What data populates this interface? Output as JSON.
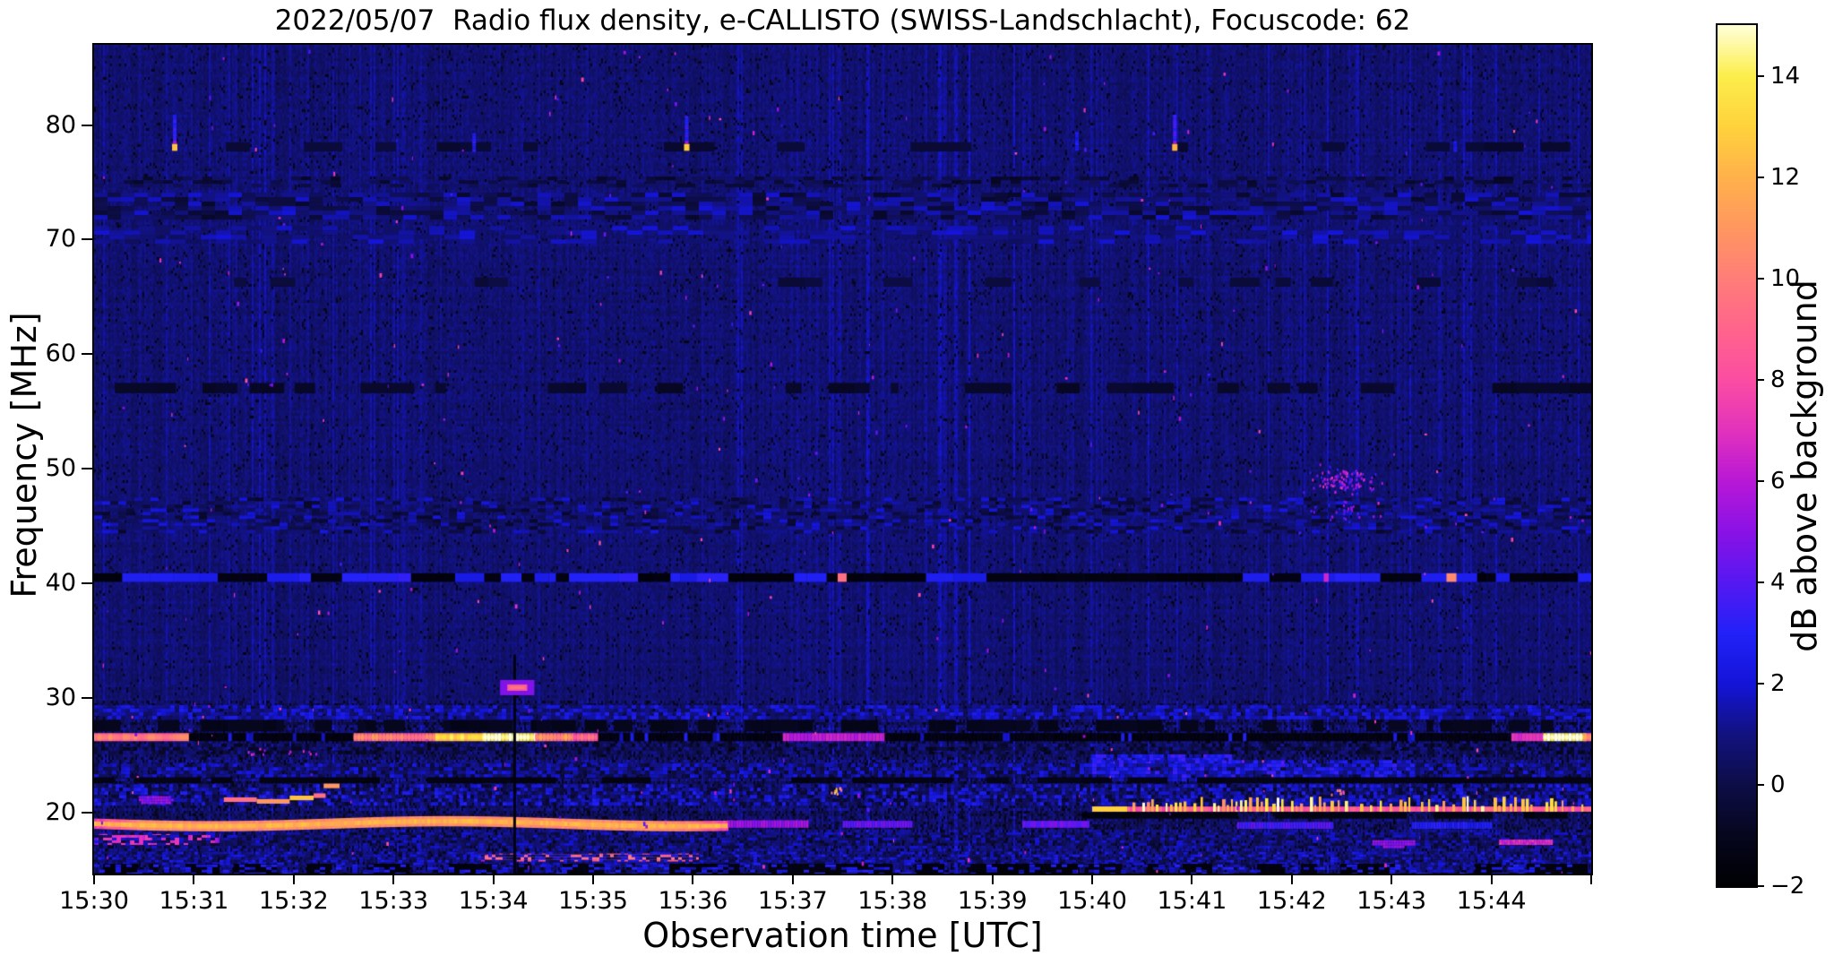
{
  "chart_data": {
    "type": "heatmap",
    "title": "2022/05/07  Radio flux density, e-CALLISTO (SWISS-Landschlacht), Focuscode: 62",
    "xlabel": "Observation time [UTC]",
    "ylabel": "Frequency [MHz]",
    "cbar_label": "dB above background",
    "x_axis": {
      "start": "15:30",
      "end": "15:45",
      "duration_min": 15,
      "tick_labels": [
        "15:30",
        "15:31",
        "15:32",
        "15:33",
        "15:34",
        "15:35",
        "15:36",
        "15:37",
        "15:38",
        "15:39",
        "15:40",
        "15:41",
        "15:42",
        "15:43",
        "15:44"
      ],
      "end_tick_unlabeled": true
    },
    "y_axis": {
      "range": [
        14.7,
        87.0
      ],
      "ticks": [
        80,
        70,
        60,
        50,
        40,
        30,
        20
      ]
    },
    "colorbar": {
      "range": [
        -2,
        15
      ],
      "tick_values": [
        14,
        12,
        10,
        8,
        6,
        4,
        2,
        0,
        -2
      ],
      "tick_labels": [
        "14",
        "12",
        "10",
        "8",
        "6",
        "4",
        "2",
        "0",
        "−2"
      ]
    },
    "colormap": [
      {
        "v": -2,
        "c": "#000003"
      },
      {
        "v": -1,
        "c": "#06061e"
      },
      {
        "v": 0,
        "c": "#0d0d47"
      },
      {
        "v": 1,
        "c": "#12127f"
      },
      {
        "v": 2,
        "c": "#1414d8"
      },
      {
        "v": 3,
        "c": "#2222f8"
      },
      {
        "v": 4,
        "c": "#5618f2"
      },
      {
        "v": 5,
        "c": "#8a12e6"
      },
      {
        "v": 6,
        "c": "#b818d6"
      },
      {
        "v": 7,
        "c": "#e232bd"
      },
      {
        "v": 8,
        "c": "#fb4da2"
      },
      {
        "v": 9,
        "c": "#ff648c"
      },
      {
        "v": 10,
        "c": "#ff7d78"
      },
      {
        "v": 11,
        "c": "#ff9760"
      },
      {
        "v": 12,
        "c": "#ffb14b"
      },
      {
        "v": 13,
        "c": "#ffd23c"
      },
      {
        "v": 14,
        "c": "#fcee4b"
      },
      {
        "v": 15,
        "c": "#ffffd9"
      }
    ],
    "background": {
      "regions": [
        {
          "f": [
            30,
            87
          ],
          "mean": 0.72,
          "var": 0.75,
          "dark_p": 0.045,
          "stria": 1.0,
          "rowmod": 0.25
        },
        {
          "f": [
            14.7,
            30
          ],
          "mean": 0.5,
          "var": 1.5,
          "dark_p": 0.16,
          "stria": 1.2,
          "rowmod": 0.9
        }
      ]
    },
    "features": [
      {
        "type": "mottle",
        "name": "75MHz-dark-row",
        "f": [
          74.7,
          75.5
        ],
        "t": [
          0,
          15
        ],
        "vmin": -0.9,
        "vmax": 0.8,
        "cw": 11,
        "ch": 4,
        "p": 0.5
      },
      {
        "type": "mottle",
        "name": "73MHz-wavy-band",
        "f": [
          71.9,
          74.1
        ],
        "t": [
          0,
          15
        ],
        "vmin": -0.7,
        "vmax": 2.0,
        "cw": 15,
        "ch": 5,
        "p": 0.8
      },
      {
        "type": "mottle",
        "name": "70MHz-light-band",
        "f": [
          69.9,
          71.2
        ],
        "t": [
          0,
          15
        ],
        "vmin": 0.4,
        "vmax": 2.1,
        "cw": 17,
        "ch": 5,
        "p": 0.55
      },
      {
        "type": "darkdash",
        "name": "78MHz-dark-dashes",
        "f": [
          77.7,
          78.5
        ],
        "t": [
          0,
          15
        ],
        "v": -0.45,
        "p": 0.4,
        "smin": 0.1,
        "smax": 0.4
      },
      {
        "type": "darkdash",
        "name": "66MHz-dark-dashes",
        "f": [
          65.9,
          66.7
        ],
        "t": [
          0,
          15
        ],
        "v": -0.25,
        "p": 0.3,
        "smin": 0.1,
        "smax": 0.3
      },
      {
        "type": "darkdash",
        "name": "57MHz-dark-dashes",
        "f": [
          56.6,
          57.5
        ],
        "t": [
          0,
          15
        ],
        "v": -0.7,
        "p": 0.45,
        "smin": 0.07,
        "smax": 0.28
      },
      {
        "type": "mottle",
        "name": "46MHz-herringbone",
        "f": [
          44.4,
          47.5
        ],
        "t": [
          0,
          15
        ],
        "vmin": -0.8,
        "vmax": 2.2,
        "cw": 9,
        "ch": 4,
        "p": 0.6,
        "sp": 0.004,
        "spv": [
          4.5,
          8
        ]
      },
      {
        "type": "rfidash",
        "name": "40.5MHz-notch",
        "f": [
          40.15,
          40.9
        ],
        "t": [
          0,
          15
        ],
        "dark": -1.7,
        "bright": 2.9,
        "pb": 0.42,
        "dashes": [
          [
            7.45,
            0.09,
            9.5
          ],
          [
            13.55,
            0.1,
            10.5
          ],
          [
            12.32,
            0.05,
            6.5
          ]
        ]
      },
      {
        "type": "mottle",
        "name": "29MHz-speckle-row",
        "f": [
          28.3,
          29.4
        ],
        "t": [
          0,
          15
        ],
        "vmin": 0.2,
        "vmax": 2.7,
        "cw": 5,
        "ch": 4,
        "p": 0.85,
        "sp": 0.007,
        "spv": [
          5,
          9.5
        ]
      },
      {
        "type": "darkdash",
        "name": "27.5MHz-dark-row",
        "f": [
          27.1,
          28.1
        ],
        "t": [
          0,
          15
        ],
        "v": -1.1,
        "p": 0.55,
        "smin": 0.05,
        "smax": 0.25
      },
      {
        "type": "mottle",
        "name": "25.6MHz-row",
        "f": [
          25.2,
          26.05
        ],
        "t": [
          0,
          15
        ],
        "vmin": -1.2,
        "vmax": 1.3,
        "cw": 4,
        "ch": 4,
        "p": 0.8
      },
      {
        "type": "mottle",
        "name": "24.6MHz-pink-flecks",
        "f": [
          24.2,
          25.1
        ],
        "t": [
          10,
          11.4
        ],
        "vmin": 1.5,
        "vmax": 4,
        "cw": 4,
        "ch": 4,
        "p": 0.85,
        "sp": 0.05,
        "spv": [
          6.5,
          10
        ]
      },
      {
        "type": "mottle",
        "name": "23.7MHz-row",
        "f": [
          23.1,
          24.3
        ],
        "t": [
          0,
          15
        ],
        "vmin": -0.6,
        "vmax": 2.5,
        "cw": 5,
        "ch": 4,
        "p": 0.8
      },
      {
        "type": "mottle",
        "name": "23.8MHz-purple-region",
        "f": [
          22.9,
          24.6
        ],
        "t": [
          10,
          13.2
        ],
        "vmin": 0.8,
        "vmax": 3.6,
        "cw": 5,
        "ch": 4,
        "p": 0.7,
        "sp": 0.02,
        "spv": [
          5,
          8
        ]
      },
      {
        "type": "darkdash",
        "name": "22.9MHz-dark-row",
        "f": [
          22.6,
          23.1
        ],
        "t": [
          0,
          15
        ],
        "v": -1.4,
        "p": 0.7,
        "smin": 0.1,
        "smax": 0.35
      },
      {
        "type": "mottle",
        "name": "21.6MHz-row",
        "f": [
          20.8,
          22.5
        ],
        "t": [
          0,
          15
        ],
        "vmin": -0.9,
        "vmax": 2.9,
        "cw": 4,
        "ch": 4,
        "p": 0.85,
        "sp": 0.004,
        "spv": [
          5,
          9
        ]
      },
      {
        "type": "blob",
        "name": "21MHz-purple-blob",
        "t": [
          0.42,
          0.78
        ],
        "f": [
          20.8,
          21.7
        ],
        "v": 5.0,
        "jit": 1.5
      },
      {
        "type": "stair",
        "name": "21MHz-orange-staircase",
        "thick": 0.4,
        "segs": [
          [
            1.3,
            1.63,
            21.15,
            9.5
          ],
          [
            1.63,
            1.96,
            21.0,
            11
          ],
          [
            1.96,
            2.2,
            21.3,
            12.5
          ],
          [
            2.2,
            2.32,
            21.5,
            9.5
          ],
          [
            2.3,
            2.46,
            22.35,
            11.0
          ]
        ]
      },
      {
        "type": "cluster",
        "name": "21.9MHz-yellow-blips",
        "ct": 7.42,
        "cf": 21.9,
        "st": 0.07,
        "sf": 0.35,
        "n": 10,
        "vmin": 9,
        "vmax": 13.5
      },
      {
        "type": "cluster",
        "name": "22MHz-orange-arc",
        "ct": 12.45,
        "cf": 21.9,
        "st": 0.1,
        "sf": 0.3,
        "n": 8,
        "vmin": 8,
        "vmax": 11
      },
      {
        "type": "cluster",
        "name": "25.4MHz-pink-specks",
        "ct": 1.9,
        "cf": 25.4,
        "st": 0.5,
        "sf": 0.25,
        "n": 12,
        "vmin": 5,
        "vmax": 8
      },
      {
        "type": "segments",
        "name": "26.6MHz-RFI-band",
        "f": [
          26.25,
          26.95
        ],
        "jitter": 1.2,
        "segs": [
          [
            0,
            0.95,
            9.3
          ],
          [
            0.95,
            2.6,
            -1.6
          ],
          [
            2.6,
            3.42,
            9.3
          ],
          [
            3.42,
            3.9,
            12.5
          ],
          [
            3.9,
            4.42,
            14.2
          ],
          [
            4.42,
            4.8,
            10
          ],
          [
            4.8,
            5.05,
            8.3
          ],
          [
            5.05,
            6.9,
            -1.6
          ],
          [
            6.9,
            7.92,
            6.2
          ],
          [
            7.92,
            14.2,
            -1.6
          ],
          [
            14.2,
            14.52,
            7
          ],
          [
            14.52,
            14.92,
            14.3
          ],
          [
            14.92,
            15,
            10
          ]
        ]
      },
      {
        "type": "hband",
        "name": "19MHz-orange-band",
        "f": [
          18.6,
          19.5
        ],
        "t": [
          0,
          6.35
        ],
        "v": 10.6,
        "corev": 12,
        "wave": 0.12,
        "fade": 0.4
      },
      {
        "type": "hband",
        "name": "19MHz-fade-1",
        "f": [
          18.7,
          19.35
        ],
        "t": [
          6.35,
          7.15
        ],
        "v": 5.3
      },
      {
        "type": "hband",
        "name": "19MHz-fade-2",
        "f": [
          18.7,
          19.3
        ],
        "t": [
          7.5,
          8.2
        ],
        "v": 4.2
      },
      {
        "type": "hband",
        "name": "19MHz-fade-3",
        "f": [
          18.7,
          19.3
        ],
        "t": [
          9.3,
          9.95
        ],
        "v": 4.4
      },
      {
        "type": "hband",
        "name": "19MHz-fade-4",
        "f": [
          18.6,
          19.2
        ],
        "t": [
          11.45,
          12.4
        ],
        "v": 3.8
      },
      {
        "type": "hband",
        "name": "19MHz-fade-5",
        "f": [
          18.6,
          19.2
        ],
        "t": [
          13.2,
          14.0
        ],
        "v": 2.8
      },
      {
        "type": "darkdash",
        "name": "19.8MHz-dark-row",
        "f": [
          19.5,
          20.05
        ],
        "t": [
          9.9,
          15
        ],
        "v": -1.5,
        "p": 0.8,
        "smin": 0.1,
        "smax": 0.4
      },
      {
        "type": "ticksline",
        "name": "20.3MHz-bright-dashed-line",
        "f": [
          20.1,
          20.55
        ],
        "t": [
          10.0,
          15
        ],
        "v": 8.5,
        "leadt": 0.35,
        "leadv": 13,
        "fup": 21.45,
        "tp": 0.45,
        "tvmin": 10.5,
        "tvmax": 15
      },
      {
        "type": "hband",
        "name": "16MHz-salmon-band",
        "f": [
          15.75,
          16.45
        ],
        "t": [
          3.85,
          6.05
        ],
        "v": 8.6,
        "corev": 9.8,
        "fade": 0.3
      },
      {
        "type": "mottle",
        "name": "16MHz-bg-row",
        "f": [
          15.6,
          16.6
        ],
        "t": [
          0,
          15
        ],
        "vmin": -0.4,
        "vmax": 2.7,
        "cw": 4,
        "ch": 3,
        "p": 0.7
      },
      {
        "type": "hband",
        "name": "17.6MHz-magenta-band",
        "f": [
          17.2,
          18.15
        ],
        "t": [
          0,
          1.25
        ],
        "v": 7.0,
        "fade": 0.25
      },
      {
        "type": "mottle",
        "name": "17.6MHz-bg-row",
        "f": [
          17.0,
          18.3
        ],
        "t": [
          0,
          15
        ],
        "vmin": -0.7,
        "vmax": 2.1,
        "cw": 5,
        "ch": 3,
        "p": 0.65
      },
      {
        "type": "blob",
        "name": "17.5MHz-purple-blob",
        "t": [
          12.78,
          13.24
        ],
        "f": [
          17.1,
          17.85
        ],
        "v": 5.2,
        "jit": 1.2
      },
      {
        "type": "blob",
        "name": "17.5MHz-pink-blob",
        "t": [
          14.05,
          14.62
        ],
        "f": [
          17.2,
          17.9
        ],
        "v": 6.8,
        "jit": 1.5
      },
      {
        "type": "darkdash",
        "name": "15MHz-bottom-dark",
        "f": [
          14.7,
          15.55
        ],
        "t": [
          0,
          15
        ],
        "v": -1.6,
        "p": 0.6,
        "smin": 0.05,
        "smax": 0.3
      },
      {
        "type": "mottle",
        "name": "15MHz-blue-dashes",
        "f": [
          14.7,
          15.5
        ],
        "t": [
          0,
          15
        ],
        "vmin": 1.2,
        "vmax": 3.2,
        "cw": 6,
        "ch": 3,
        "p": 0.3
      },
      {
        "type": "cluster",
        "name": "49MHz-faint-burst",
        "ct": 12.52,
        "cf": 49.1,
        "st": 0.28,
        "sf": 1.1,
        "n": 110,
        "vmin": 2.8,
        "vmax": 7.2
      },
      {
        "type": "cluster",
        "name": "46MHz-faint-burst-tail",
        "ct": 12.5,
        "cf": 46.2,
        "st": 0.3,
        "sf": 1.0,
        "n": 28,
        "vmin": 2.5,
        "vmax": 6
      },
      {
        "type": "specks",
        "name": "random-pink-specks",
        "t": [
          0,
          15
        ],
        "f": [
          14.8,
          86.8
        ],
        "n": 300,
        "vmin": 3.5,
        "vmax": 8.5
      },
      {
        "type": "vline",
        "name": "dropout-column-15:34.2",
        "at": 4.2,
        "f": [
          14.7,
          33.8
        ],
        "v": -1.6,
        "w": 3
      },
      {
        "type": "spot",
        "name": "31MHz-pink-blip",
        "at": 4.24,
        "f": [
          30.65,
          31.2
        ],
        "w": 0.2,
        "v": 8.6,
        "halov": 4.8
      },
      {
        "type": "spot78",
        "name": "78MHz-cal-spot-1",
        "at": 0.79,
        "streak": [
          80.9,
          78.6
        ],
        "sv": 3.4,
        "yellow": 12.5
      },
      {
        "type": "spot78",
        "name": "78MHz-faint-1",
        "at": 3.79,
        "streak": [
          79.3,
          77.8
        ],
        "sv": 3.2,
        "yellow": null
      },
      {
        "type": "spot78",
        "name": "78MHz-cal-spot-2",
        "at": 5.92,
        "streak": [
          80.8,
          78.6
        ],
        "sv": 3.4,
        "yellow": 12.8
      },
      {
        "type": "spot78",
        "name": "78MHz-faint-2",
        "at": 9.83,
        "streak": [
          79.4,
          77.8
        ],
        "sv": 2.8,
        "yellow": null
      },
      {
        "type": "spot78",
        "name": "78MHz-cal-spot-3",
        "at": 10.81,
        "streak": [
          80.9,
          78.6
        ],
        "sv": 3.6,
        "yellow": 12.0
      },
      {
        "type": "spot78",
        "name": "78MHz-faint-3",
        "at": 13.62,
        "streak": [
          78.6,
          77.8
        ],
        "sv": 2.6,
        "yellow": null
      }
    ]
  }
}
